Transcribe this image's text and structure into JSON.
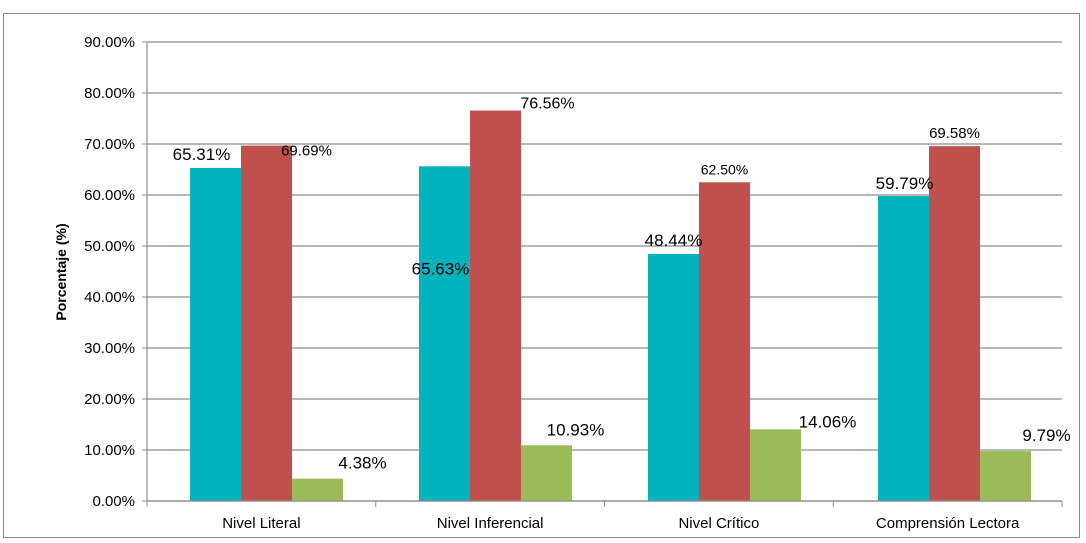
{
  "chart_data": {
    "type": "bar",
    "ylabel": "Porcentaje (%)",
    "xlabel": "",
    "ylim": [
      0,
      90
    ],
    "y_ticks": [
      "0.00%",
      "10.00%",
      "20.00%",
      "30.00%",
      "40.00%",
      "50.00%",
      "60.00%",
      "70.00%",
      "80.00%",
      "90.00%"
    ],
    "grid": true,
    "legend": "none",
    "categories": [
      "Nivel Literal",
      "Nivel Inferencial",
      "Nivel Crítico",
      "Comprensión Lectora"
    ],
    "series": [
      {
        "color": "#00b3bd",
        "values": [
          65.31,
          65.63,
          48.44,
          59.79
        ],
        "labels": [
          "65.31%",
          "65.63%",
          "48.44%",
          "59.79%"
        ]
      },
      {
        "color": "#c0504d",
        "values": [
          69.69,
          76.56,
          62.5,
          69.58
        ],
        "labels": [
          "69.69%",
          "76.56%",
          "62.50%",
          "69.58%"
        ]
      },
      {
        "color": "#9bbb59",
        "values": [
          4.38,
          10.93,
          14.06,
          9.79
        ],
        "labels": [
          "4.38%",
          "10.93%",
          "14.06%",
          "9.79%"
        ]
      }
    ]
  }
}
